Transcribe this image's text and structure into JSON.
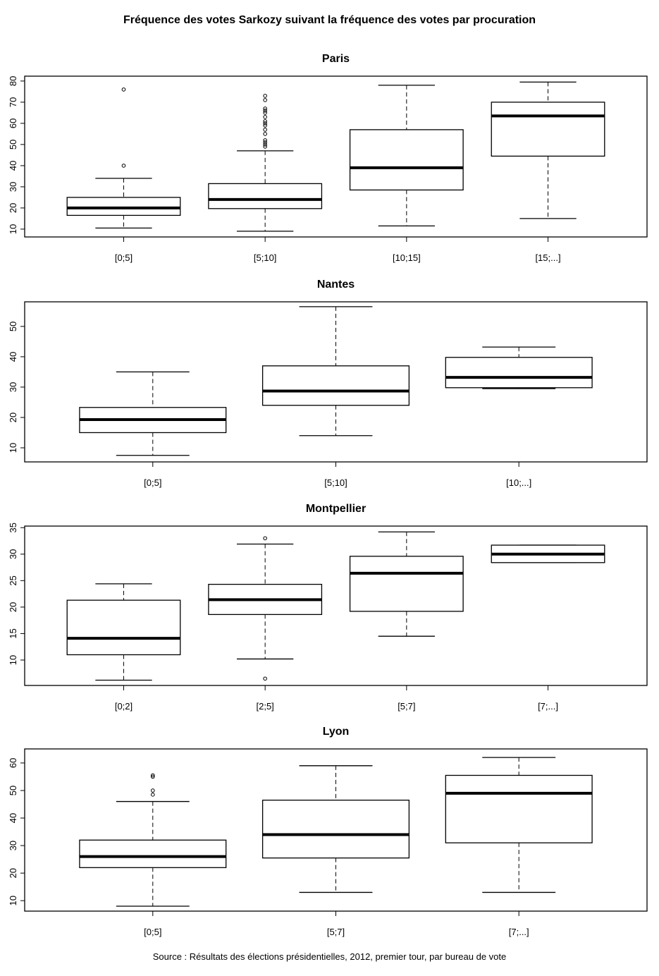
{
  "chart_data": [
    {
      "type": "box",
      "title": "Paris",
      "ylim": [
        6.3,
        82.3
      ],
      "yticks": [
        10,
        20,
        30,
        40,
        50,
        60,
        70,
        80
      ],
      "categories": [
        "[0;5]",
        "[5;10]",
        "[10;15]",
        "[15;...]"
      ],
      "boxes": [
        {
          "min": 10.5,
          "q1": 16.5,
          "median": 20,
          "q3": 25,
          "max": 34,
          "outliers": [
            40,
            76
          ]
        },
        {
          "min": 9,
          "q1": 19.7,
          "median": 24,
          "q3": 31.5,
          "max": 47,
          "outliers": [
            49,
            50,
            51,
            52,
            55,
            57,
            59,
            60,
            61,
            63,
            65,
            66,
            67,
            71,
            73
          ]
        },
        {
          "min": 11.5,
          "q1": 28.5,
          "median": 39,
          "q3": 57,
          "max": 78,
          "outliers": []
        },
        {
          "min": 15,
          "q1": 44.5,
          "median": 63.5,
          "q3": 70,
          "max": 79.5,
          "outliers": []
        }
      ]
    },
    {
      "type": "box",
      "title": "Nantes",
      "ylim": [
        5.35,
        58.1
      ],
      "yticks": [
        10,
        20,
        30,
        40,
        50
      ],
      "categories": [
        "[0;5]",
        "[5;10]",
        "[10;...]"
      ],
      "boxes": [
        {
          "min": 7.5,
          "q1": 15,
          "median": 19.3,
          "q3": 23.3,
          "max": 35,
          "outliers": []
        },
        {
          "min": 14,
          "q1": 24,
          "median": 28.7,
          "q3": 37,
          "max": 56.5,
          "outliers": []
        },
        {
          "min": 29.5,
          "q1": 29.8,
          "median": 33.2,
          "q3": 39.8,
          "max": 43.2,
          "outliers": []
        }
      ]
    },
    {
      "type": "box",
      "title": "Montpellier",
      "ylim": [
        5.2,
        35.3
      ],
      "yticks": [
        10,
        15,
        20,
        25,
        30,
        35
      ],
      "categories": [
        "[0;2]",
        "[2;5]",
        "[5;7]",
        "[7;...]"
      ],
      "boxes": [
        {
          "min": 6.2,
          "q1": 11,
          "median": 14.1,
          "q3": 21.3,
          "max": 24.4,
          "outliers": []
        },
        {
          "min": 10.2,
          "q1": 18.6,
          "median": 21.4,
          "q3": 24.3,
          "max": 31.9,
          "outliers": [
            6.5,
            33
          ]
        },
        {
          "min": 14.5,
          "q1": 19.2,
          "median": 26.4,
          "q3": 29.6,
          "max": 34.2,
          "outliers": []
        },
        {
          "min": 28.4,
          "q1": 28.4,
          "median": 30,
          "q3": 31.7,
          "max": 31.7,
          "outliers": []
        }
      ]
    },
    {
      "type": "box",
      "title": "Lyon",
      "ylim": [
        6.2,
        65.1
      ],
      "yticks": [
        10,
        20,
        30,
        40,
        50,
        60
      ],
      "categories": [
        "[0;5]",
        "[5;7]",
        "[7;...]"
      ],
      "boxes": [
        {
          "min": 8,
          "q1": 22,
          "median": 26,
          "q3": 32,
          "max": 46,
          "outliers": [
            48.5,
            50,
            55,
            55.5
          ]
        },
        {
          "min": 13,
          "q1": 25.5,
          "median": 34,
          "q3": 46.5,
          "max": 59,
          "outliers": []
        },
        {
          "min": 13,
          "q1": 31,
          "median": 49,
          "q3": 55.5,
          "max": 62,
          "outliers": []
        }
      ]
    }
  ],
  "title": "Fréquence des votes Sarkozy suivant la fréquence des votes par procuration",
  "source": "Source : Résultats des élections présidentielles, 2012, premier tour, par bureau de vote"
}
